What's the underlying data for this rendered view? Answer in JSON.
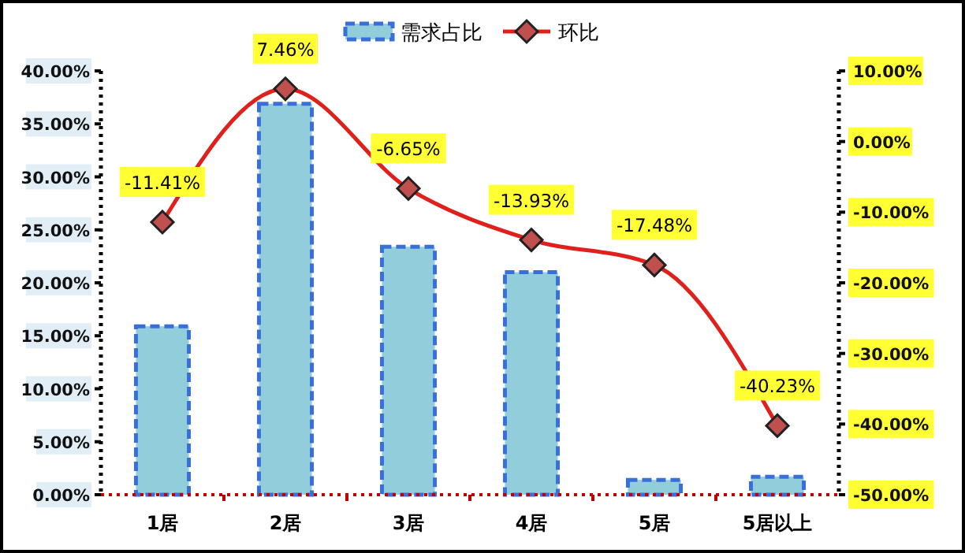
{
  "chart_data": {
    "type": "bar",
    "categories": [
      "1居",
      "2居",
      "3居",
      "4居",
      "5居",
      "5居以上"
    ],
    "series": [
      {
        "name": "需求占比",
        "color": "#92cddc",
        "values": [
          15.9,
          36.9,
          23.4,
          21.0,
          1.4,
          1.7
        ]
      },
      {
        "name": "环比",
        "type": "line",
        "axis": "y2",
        "color": "#e0201b",
        "marker": "diamond",
        "values": [
          -11.41,
          7.46,
          -6.65,
          -13.93,
          -17.48,
          -40.23
        ],
        "value_labels": [
          "-11.41%",
          "7.46%",
          "-6.65%",
          "-13.93%",
          "-17.48%",
          "-40.23%"
        ]
      }
    ],
    "ylim": [
      0,
      40
    ],
    "yticks": [
      {
        "value": 0,
        "label": "0.00%"
      },
      {
        "value": 5,
        "label": "5.00%"
      },
      {
        "value": 10,
        "label": "10.00%"
      },
      {
        "value": 15,
        "label": "15.00%"
      },
      {
        "value": 20,
        "label": "20.00%"
      },
      {
        "value": 25,
        "label": "25.00%"
      },
      {
        "value": 30,
        "label": "30.00%"
      },
      {
        "value": 35,
        "label": "35.00%"
      },
      {
        "value": 40,
        "label": "40.00%"
      }
    ],
    "y2lim": [
      -50,
      10
    ],
    "y2ticks": [
      {
        "value": -50,
        "label": "-50.00%"
      },
      {
        "value": -40,
        "label": "-40.00%"
      },
      {
        "value": -30,
        "label": "-30.00%"
      },
      {
        "value": -20,
        "label": "-20.00%"
      },
      {
        "value": -10,
        "label": "-10.00%"
      },
      {
        "value": 0,
        "label": "0.00%"
      },
      {
        "value": 10,
        "label": "10.00%"
      }
    ],
    "legend": "top",
    "grid": false
  }
}
